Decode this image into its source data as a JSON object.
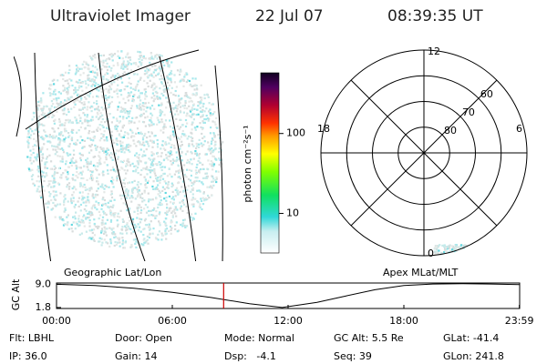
{
  "header": {
    "title": "Ultraviolet Imager",
    "date": "22 Jul 07",
    "time": "08:39:35 UT"
  },
  "colorbar": {
    "label": "photon cm⁻²s⁻¹",
    "log": true,
    "clim": [
      3.2,
      575
    ],
    "ticks": [
      10,
      100
    ]
  },
  "polar_plot": {
    "rlim": [
      90,
      50
    ],
    "rings": [
      80,
      70,
      60
    ],
    "hour_labels": {
      "top": "12",
      "left": "18",
      "right": "6",
      "bottom": "0"
    }
  },
  "chart_data": {
    "type": "line",
    "left_title": "Geographic Lat/Lon",
    "right_title": "Apex MLat/MLT",
    "y_label": "GC Alt",
    "x": [
      0,
      2,
      4,
      6,
      8,
      10,
      11.7,
      13.5,
      15,
      16.5,
      18,
      19.5,
      21,
      22.5,
      24
    ],
    "values": [
      9.0,
      8.6,
      7.8,
      6.5,
      4.9,
      3.0,
      1.8,
      3.4,
      5.4,
      7.3,
      8.6,
      9.1,
      9.2,
      9.1,
      8.9
    ],
    "color": "#000000",
    "xlim": [
      0,
      24
    ],
    "ylim": [
      1.5,
      9.4
    ],
    "xticks": [
      {
        "value": 0,
        "label": "00:00"
      },
      {
        "value": 6,
        "label": "06:00"
      },
      {
        "value": 12,
        "label": "12:00"
      },
      {
        "value": 18,
        "label": "18:00"
      },
      {
        "value": 23.983,
        "label": "23:59"
      }
    ],
    "yticks": [
      {
        "value": 9.0,
        "label": "9.0"
      },
      {
        "value": 1.8,
        "label": "1.8"
      }
    ],
    "marker_x": 8.66,
    "marker_color": "#cc0000"
  },
  "footer": {
    "rows": [
      [
        "Flt: LBHL",
        "Door: Open",
        "Mode: Normal",
        "GC Alt: 5.5 Re",
        "GLat: -41.4"
      ],
      [
        "IP: 36.0",
        "Gain: 14",
        "Dsp:   -4.1",
        "Seq: 39",
        "GLon: 241.8"
      ]
    ]
  }
}
